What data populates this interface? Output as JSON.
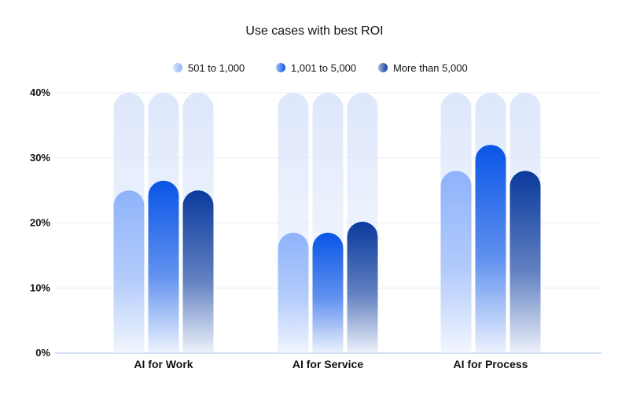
{
  "chart_data": {
    "type": "bar",
    "title": "Use cases with best ROI",
    "xlabel": "",
    "ylabel": "",
    "ylim": [
      0,
      40
    ],
    "yticks": [
      "0%",
      "10%",
      "20%",
      "30%",
      "40%"
    ],
    "y_tick_values": [
      0,
      10,
      20,
      30,
      40
    ],
    "grid": true,
    "legend_position": "top-center",
    "categories": [
      "AI for Work",
      "AI for Service",
      "AI for Process"
    ],
    "series": [
      {
        "name": "501 to 1,000",
        "values": [
          25,
          18.5,
          28
        ],
        "color": "#8fb3fa"
      },
      {
        "name": "1,001 to 5,000",
        "values": [
          26.5,
          18.5,
          32
        ],
        "color": "#0a55e6"
      },
      {
        "name": "More than 5,000",
        "values": [
          25,
          20.2,
          28
        ],
        "color": "#0a3a9c"
      }
    ]
  }
}
